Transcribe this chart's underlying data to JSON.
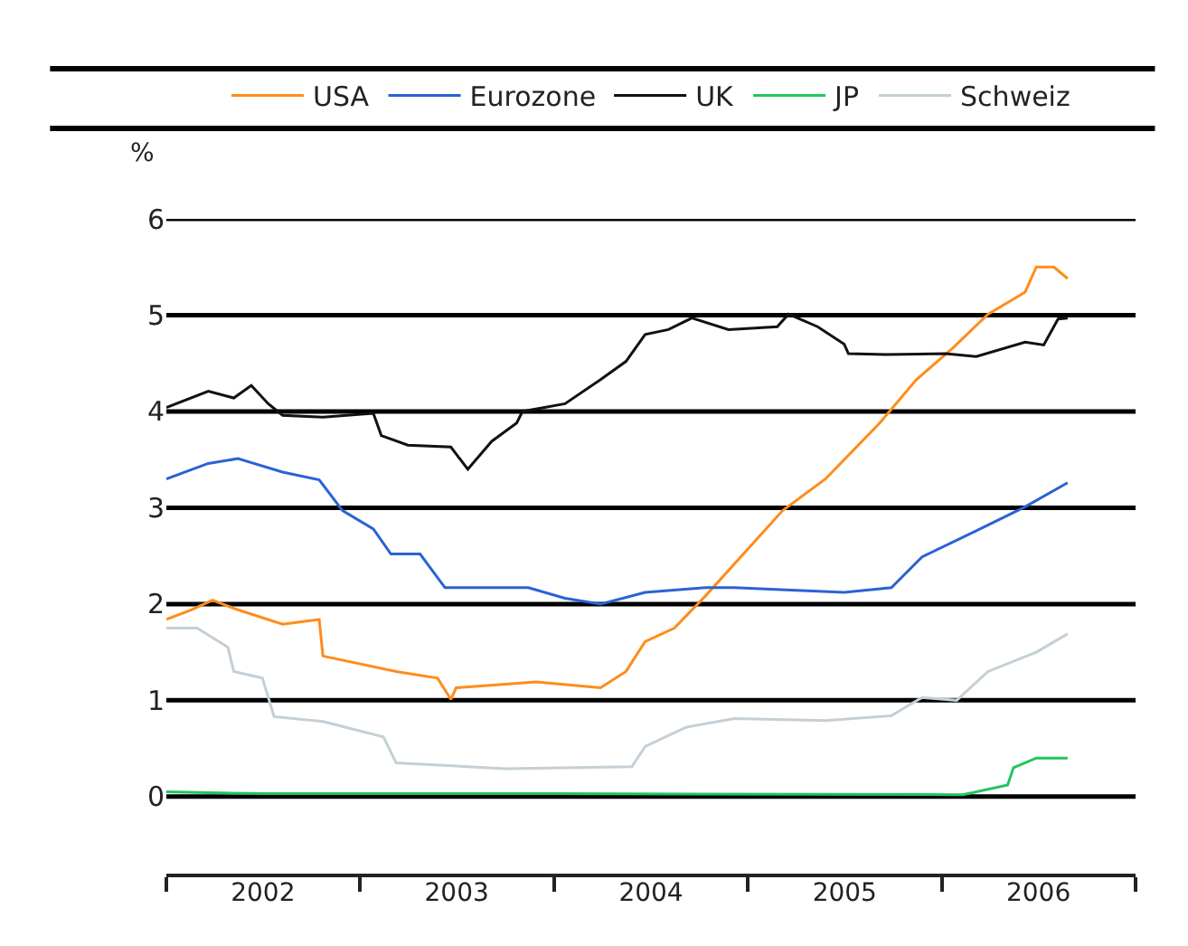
{
  "chart_data": {
    "type": "line",
    "ylabel": "%",
    "legend": "top",
    "grid": "y",
    "line_style": "solid",
    "marker": "none",
    "xlim": [
      "2002-01-01",
      "2007-01-01"
    ],
    "ylim": [
      -0.8,
      6
    ],
    "yticks": [
      0,
      1,
      2,
      3,
      4,
      5,
      6
    ],
    "xticks": [
      {
        "value": "2002-01-01",
        "label": null
      },
      {
        "value": "2003-01-01",
        "label": null
      },
      {
        "value": "2004-01-01",
        "label": null
      },
      {
        "value": "2005-01-01",
        "label": null
      },
      {
        "value": "2006-01-01",
        "label": null
      },
      {
        "value": "2007-01-01",
        "label": null
      },
      {
        "value": "2002-07-02",
        "label": "2002"
      },
      {
        "value": "2003-07-02",
        "label": "2003"
      },
      {
        "value": "2004-07-02",
        "label": "2004"
      },
      {
        "value": "2005-07-02",
        "label": "2005"
      },
      {
        "value": "2006-07-02",
        "label": "2006"
      }
    ],
    "series": [
      {
        "name": "USA",
        "color": "#ff8c1a",
        "x": [
          "2002-01-01",
          "2002-02-17",
          "2002-03-29",
          "2002-05-16",
          "2002-08-08",
          "2002-10-16",
          "2002-10-23",
          "2003-03-10",
          "2003-05-27",
          "2003-06-21",
          "2003-07-01",
          "2003-11-29",
          "2004-03-29",
          "2004-05-16",
          "2004-06-21",
          "2004-08-15",
          "2004-10-12",
          "2005-03-07",
          "2005-05-27",
          "2005-09-06",
          "2005-11-14",
          "2006-01-22",
          "2006-03-29",
          "2006-06-07",
          "2006-06-28",
          "2006-07-31",
          "2006-08-26"
        ],
        "values": [
          1.84,
          1.94,
          2.04,
          1.94,
          1.79,
          1.84,
          1.46,
          1.3,
          1.23,
          1.01,
          1.13,
          1.19,
          1.13,
          1.3,
          1.61,
          1.75,
          2.08,
          2.97,
          3.3,
          3.88,
          4.33,
          4.66,
          5.01,
          5.24,
          5.5,
          5.5,
          5.38
        ]
      },
      {
        "name": "Eurozone",
        "color": "#2a62d4",
        "x": [
          "2002-01-01",
          "2002-03-21",
          "2002-05-16",
          "2002-08-08",
          "2002-10-16",
          "2002-11-29",
          "2003-01-26",
          "2003-02-28",
          "2003-04-24",
          "2003-06-10",
          "2003-11-14",
          "2004-01-22",
          "2004-03-29",
          "2004-06-21",
          "2004-10-12",
          "2004-12-06",
          "2005-07-01",
          "2005-09-28",
          "2005-11-25",
          "2006-03-07",
          "2006-06-07",
          "2006-08-26"
        ],
        "values": [
          3.3,
          3.46,
          3.51,
          3.37,
          3.29,
          2.97,
          2.78,
          2.52,
          2.52,
          2.17,
          2.17,
          2.06,
          2.0,
          2.12,
          2.17,
          2.17,
          2.12,
          2.17,
          2.49,
          2.76,
          3.01,
          3.26
        ]
      },
      {
        "name": "UK",
        "color": "#111111",
        "x": [
          "2002-01-01",
          "2002-03-21",
          "2002-05-08",
          "2002-06-10",
          "2002-07-12",
          "2002-08-08",
          "2002-10-23",
          "2003-01-26",
          "2003-02-10",
          "2003-04-01",
          "2003-06-21",
          "2003-07-23",
          "2003-09-06",
          "2003-10-23",
          "2003-11-03",
          "2004-01-22",
          "2004-03-29",
          "2004-05-16",
          "2004-06-21",
          "2004-08-04",
          "2004-09-17",
          "2004-11-25",
          "2005-02-25",
          "2005-03-18",
          "2005-05-12",
          "2005-07-01",
          "2005-07-09",
          "2005-09-17",
          "2006-01-08",
          "2006-03-07",
          "2006-06-07",
          "2006-07-12",
          "2006-08-08",
          "2006-08-26"
        ],
        "values": [
          4.04,
          4.21,
          4.14,
          4.27,
          4.08,
          3.96,
          3.94,
          3.98,
          3.75,
          3.65,
          3.63,
          3.4,
          3.69,
          3.88,
          4.0,
          4.08,
          4.33,
          4.52,
          4.8,
          4.85,
          4.97,
          4.85,
          4.88,
          5.01,
          4.88,
          4.7,
          4.6,
          4.59,
          4.6,
          4.57,
          4.72,
          4.69,
          4.96,
          4.97
        ]
      },
      {
        "name": "JP",
        "color": "#22c55e",
        "x": [
          "2002-01-01",
          "2002-07-01",
          "2004-01-01",
          "2006-02-10",
          "2006-05-05",
          "2006-05-16",
          "2006-06-28",
          "2006-08-26"
        ],
        "values": [
          0.05,
          0.03,
          0.03,
          0.02,
          0.12,
          0.3,
          0.4,
          0.4
        ]
      },
      {
        "name": "Schweiz",
        "color": "#c4cfd6",
        "x": [
          "2002-01-01",
          "2002-02-28",
          "2002-04-27",
          "2002-05-08",
          "2002-07-01",
          "2002-07-23",
          "2002-10-23",
          "2003-02-14",
          "2003-03-10",
          "2003-10-01",
          "2004-05-27",
          "2004-06-21",
          "2004-09-06",
          "2004-12-06",
          "2005-05-27",
          "2005-09-28",
          "2005-11-25",
          "2006-01-29",
          "2006-03-29",
          "2006-06-28",
          "2006-08-26"
        ],
        "values": [
          1.75,
          1.75,
          1.55,
          1.3,
          1.23,
          0.83,
          0.78,
          0.62,
          0.35,
          0.29,
          0.31,
          0.52,
          0.72,
          0.81,
          0.79,
          0.84,
          1.03,
          1.0,
          1.3,
          1.5,
          1.69
        ]
      }
    ]
  }
}
